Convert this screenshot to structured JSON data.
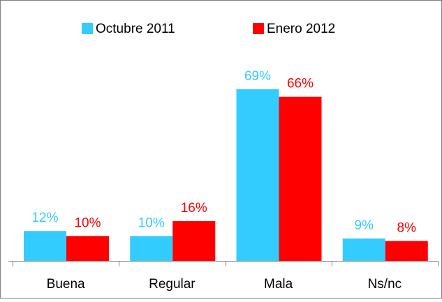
{
  "chart_data": {
    "type": "bar",
    "categories": [
      "Buena",
      "Regular",
      "Mala",
      "Ns/nc"
    ],
    "series": [
      {
        "name": "Octubre 2011",
        "color": "#33ccff",
        "values": [
          12,
          10,
          69,
          9
        ],
        "value_labels": [
          "12%",
          "10%",
          "69%",
          "9%"
        ]
      },
      {
        "name": "Enero 2012",
        "color": "#ff0000",
        "values": [
          10,
          16,
          66,
          8
        ],
        "value_labels": [
          "10%",
          "16%",
          "66%",
          "8%"
        ]
      }
    ],
    "legend": "top"
  }
}
